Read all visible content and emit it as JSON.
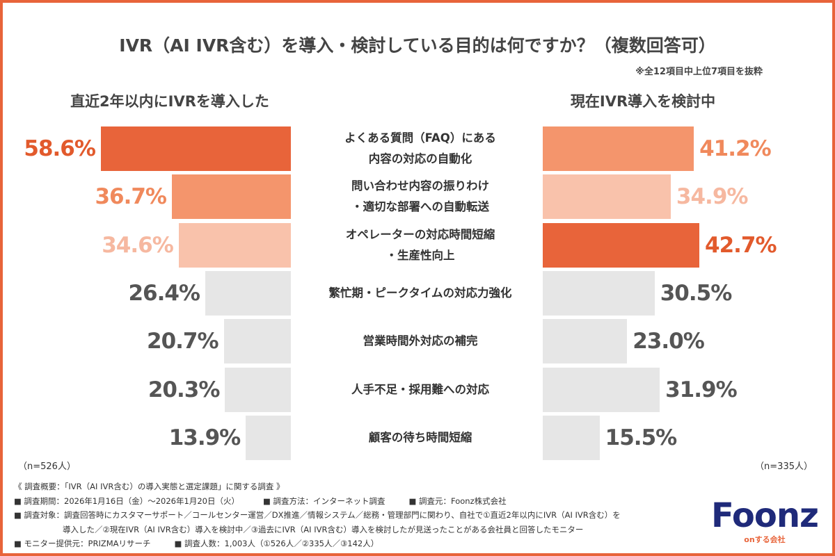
{
  "chart_data": {
    "type": "butterfly",
    "title": "IVR（AI IVR含む）を導入・検討している目的は何ですか？（複数回答可）",
    "subtitle": "※全12項目中上位7項目を抜粋",
    "categories": [
      "よくある質問（FAQ）にある\n内容の対応の自動化",
      "問い合わせ内容の振りわけ\n・適切な部署への自動転送",
      "オペレーターの対応時間短縮\n・生産性向上",
      "繁忙期・ピークタイムの対応力強化",
      "営業時間外対応の補完",
      "人手不足・採用難への対応",
      "顧客の待ち時間短縮"
    ],
    "series": [
      {
        "name": "直近2年以内にIVRを導入した",
        "sample_label": "（n=526人）",
        "values": [
          58.6,
          36.7,
          34.6,
          26.4,
          20.7,
          20.3,
          13.9
        ],
        "value_labels": [
          "58.6%",
          "36.7%",
          "34.6%",
          "26.4%",
          "20.7%",
          "20.3%",
          "13.9%"
        ],
        "colors": [
          "#e8643a",
          "#f4956c",
          "#f9c2ab",
          "#e6e6e6",
          "#e6e6e6",
          "#e6e6e6",
          "#e6e6e6"
        ],
        "label_colors": [
          "#e25a2c",
          "#f0895c",
          "#f6b8a0",
          "#555555",
          "#555555",
          "#555555",
          "#555555"
        ]
      },
      {
        "name": "現在IVR導入を検討中",
        "sample_label": "（n=335人）",
        "values": [
          41.2,
          34.9,
          42.7,
          30.5,
          23.0,
          31.9,
          15.5
        ],
        "value_labels": [
          "41.2%",
          "34.9%",
          "42.7%",
          "30.5%",
          "23.0%",
          "31.9%",
          "15.5%"
        ],
        "colors": [
          "#f4956c",
          "#f9c2ab",
          "#e8643a",
          "#e6e6e6",
          "#e6e6e6",
          "#e6e6e6",
          "#e6e6e6"
        ],
        "label_colors": [
          "#f0895c",
          "#f6b8a0",
          "#e25a2c",
          "#555555",
          "#555555",
          "#555555",
          "#555555"
        ]
      }
    ]
  },
  "footer": [
    [
      "《 調査概要：「IVR（AI IVR含む）の導入実態と選定課題」に関する調査 》"
    ],
    [
      "■ 調査期間：2026年1月16日（金）〜2026年1月20日（火）",
      "■ 調査方法：インターネット調査",
      "■ 調査元：Foonz株式会社"
    ],
    [
      "■ 調査対象：調査回答時にカスタマーサポート／コールセンター運営／DX推進／情報システム／総務・管理部門に関わり、自社で①直近2年以内にIVR（AI IVR含む）を"
    ],
    [
      "導入した／②現在IVR（AI IVR含む）導入を検討中／③過去にIVR（AI IVR含む）導入を検討したが見送ったことがある会社員と回答したモニター"
    ],
    [
      "■ モニター提供元：PRIZMAリサーチ",
      "■ 調査人数：1,003人（①526人／②335人／③142人）"
    ]
  ],
  "logo": {
    "name": "Foonz",
    "tagline": "onする会社"
  }
}
